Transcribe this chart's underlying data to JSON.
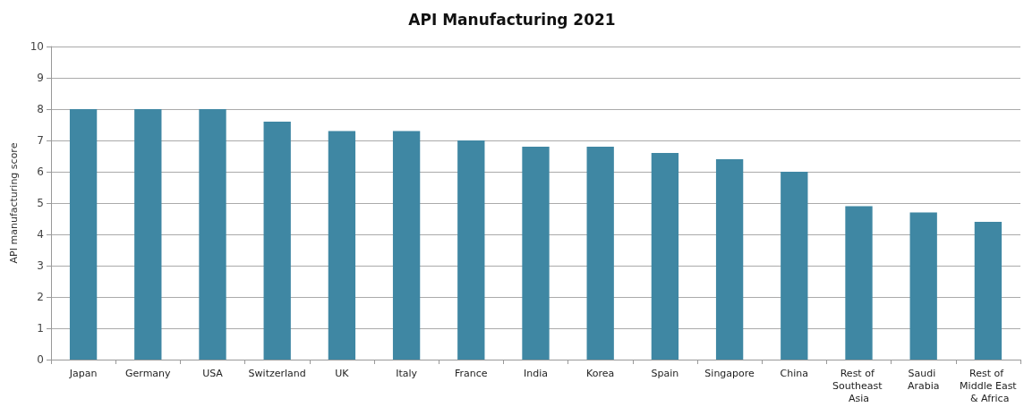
{
  "chart_data": {
    "type": "bar",
    "title": "API Manufacturing 2021",
    "ylabel": "API manufacturing score",
    "categories": [
      "Japan",
      "Germany",
      "USA",
      "Switzerland",
      "UK",
      "Italy",
      "France",
      "India",
      "Korea",
      "Spain",
      "Singapore",
      "China",
      "Rest of Southeast Asia",
      "Saudi Arabia",
      "Rest of Middle East & Africa"
    ],
    "values": [
      8.0,
      8.0,
      8.0,
      7.6,
      7.3,
      7.3,
      7.0,
      6.8,
      6.8,
      6.6,
      6.4,
      6.0,
      4.9,
      4.7,
      4.4
    ],
    "color": "#3f87a3",
    "ylim": [
      0,
      10
    ],
    "yticks": [
      0,
      1,
      2,
      3,
      4,
      5,
      6,
      7,
      8,
      9,
      10
    ],
    "grid": "y"
  }
}
